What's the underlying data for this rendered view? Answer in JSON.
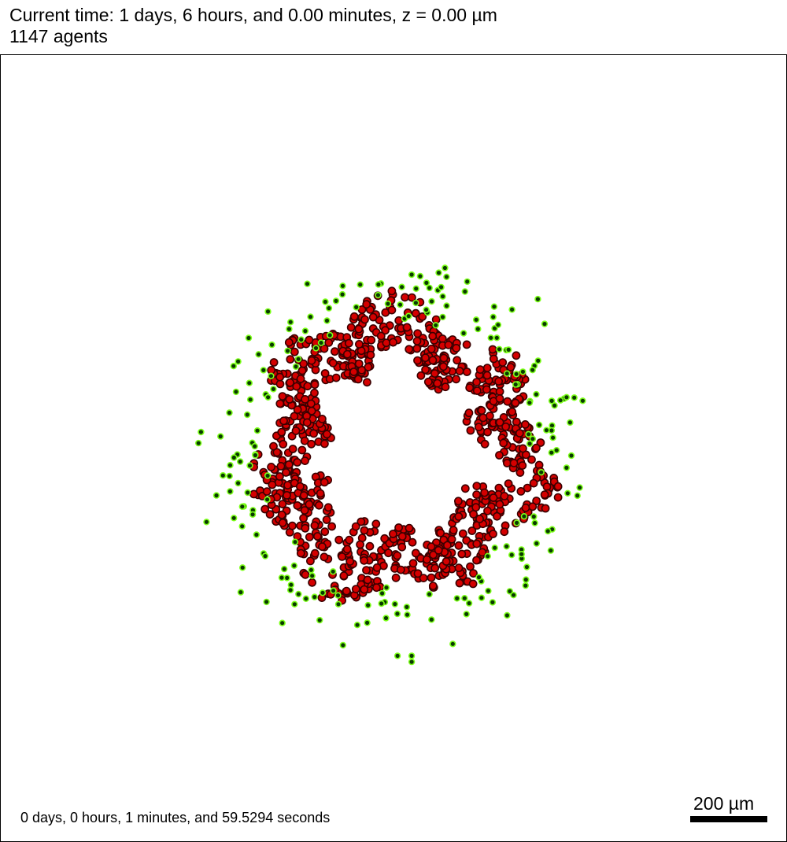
{
  "header": {
    "time_line": "Current time: 1 days, 6 hours, and 0.00 minutes, z = 0.00 µm",
    "agent_count": "1147 agents"
  },
  "footer": {
    "elapsed": "0 days, 0 hours, 1 minutes, and 59.5294 seconds",
    "scale_label": "200 µm"
  },
  "colors": {
    "red_cell_fill": "#d40000",
    "red_cell_outline": "#3a0000",
    "green_cell_fill": "#0a3a00",
    "green_cell_outline": "#7dff1a",
    "background": "#ffffff",
    "frame": "#000000"
  },
  "legend": {
    "red_cells": "red agents (outer ring core)",
    "green_cells": "green agents (ring periphery)"
  }
}
